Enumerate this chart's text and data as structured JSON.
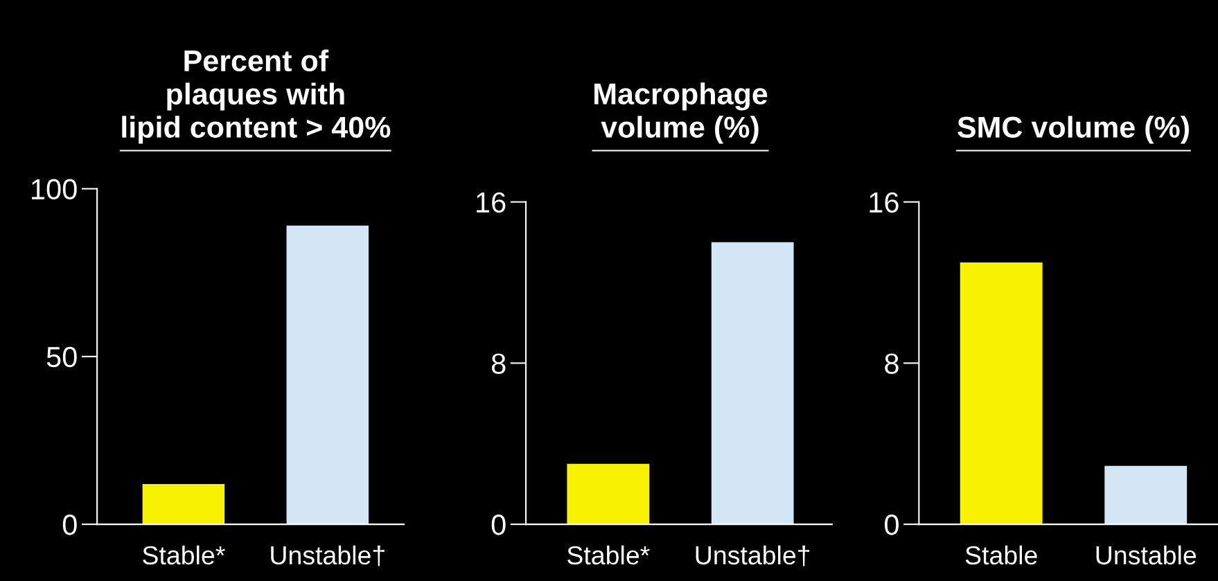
{
  "chart_data": [
    {
      "type": "bar",
      "title": "Percent of\nplaques with\nlipid content > 40%",
      "categories": [
        "Stable*",
        "Unstable†"
      ],
      "values": [
        12,
        89
      ],
      "colors": [
        "#f7f200",
        "#d2e6f6"
      ],
      "ylim": [
        0,
        100
      ],
      "yticks": [
        0,
        50,
        100
      ]
    },
    {
      "type": "bar",
      "title": "Macrophage\nvolume (%)",
      "categories": [
        "Stable*",
        "Unstable†"
      ],
      "values": [
        3,
        14
      ],
      "colors": [
        "#f7f200",
        "#d2e6f6"
      ],
      "ylim": [
        0,
        16
      ],
      "yticks": [
        0,
        8,
        16
      ]
    },
    {
      "type": "bar",
      "title": "SMC volume (%)",
      "categories": [
        "Stable",
        "Unstable"
      ],
      "values": [
        13,
        2.9
      ],
      "colors": [
        "#f7f200",
        "#d2e6f6"
      ],
      "ylim": [
        0,
        16
      ],
      "yticks": [
        0,
        8,
        16
      ]
    }
  ]
}
